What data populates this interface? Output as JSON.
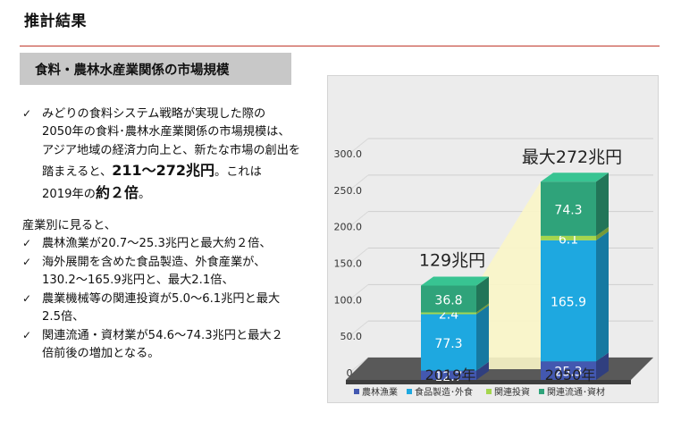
{
  "page": {
    "title": "推計結果",
    "section_header": "食料・農林水産業関係の市場規模"
  },
  "summary": {
    "line1": "みどりの食料システム戦略が実現した際の",
    "line2": "2050年の食料･農林水産業関係の市場規模は、",
    "line3": "アジア地域の経済力向上と、新たな市場の創出を",
    "line4_pre": "踏まえると、",
    "line4_bold": "211～272兆円",
    "line4_post": "。これは",
    "line5_pre": "2019年の",
    "line5_bold": "約２倍",
    "line5_post": "。"
  },
  "industry": {
    "intro": "産業別に見ると、",
    "items": [
      {
        "lines": [
          "農林漁業が20.7～25.3兆円と最大約２倍、"
        ]
      },
      {
        "lines": [
          "海外展開を含めた食品製造、外食産業が、",
          "130.2～165.9兆円と、最大2.1倍、"
        ]
      },
      {
        "lines": [
          "農業機械等の関連投資が5.0～6.1兆円と最大",
          "2.5倍、"
        ]
      },
      {
        "lines": [
          "関連流通・資材業が54.6～74.3兆円と最大２",
          "倍前後の増加となる。"
        ]
      }
    ]
  },
  "chart_data": {
    "type": "bar",
    "stacked": true,
    "three_d": true,
    "categories": [
      "2019年",
      "2050年"
    ],
    "series": [
      {
        "name": "農林漁業",
        "color": "#4358b0",
        "values": [
          12.7,
          25.3
        ]
      },
      {
        "name": "食品製造･外食",
        "color": "#1ea8e0",
        "values": [
          77.3,
          165.9
        ]
      },
      {
        "name": "関連投資",
        "color": "#a4d64e",
        "values": [
          2.4,
          6.1
        ]
      },
      {
        "name": "関連流通･資材",
        "color": "#2fa37a",
        "values": [
          36.8,
          74.3
        ]
      }
    ],
    "totals_label": [
      "129兆円",
      "最大272兆円"
    ],
    "y_ticks": [
      "0.0",
      "50.0",
      "100.0",
      "150.0",
      "200.0",
      "250.0",
      "300.0"
    ],
    "ylim": [
      0,
      300
    ],
    "grid": true,
    "legend_position": "bottom"
  }
}
